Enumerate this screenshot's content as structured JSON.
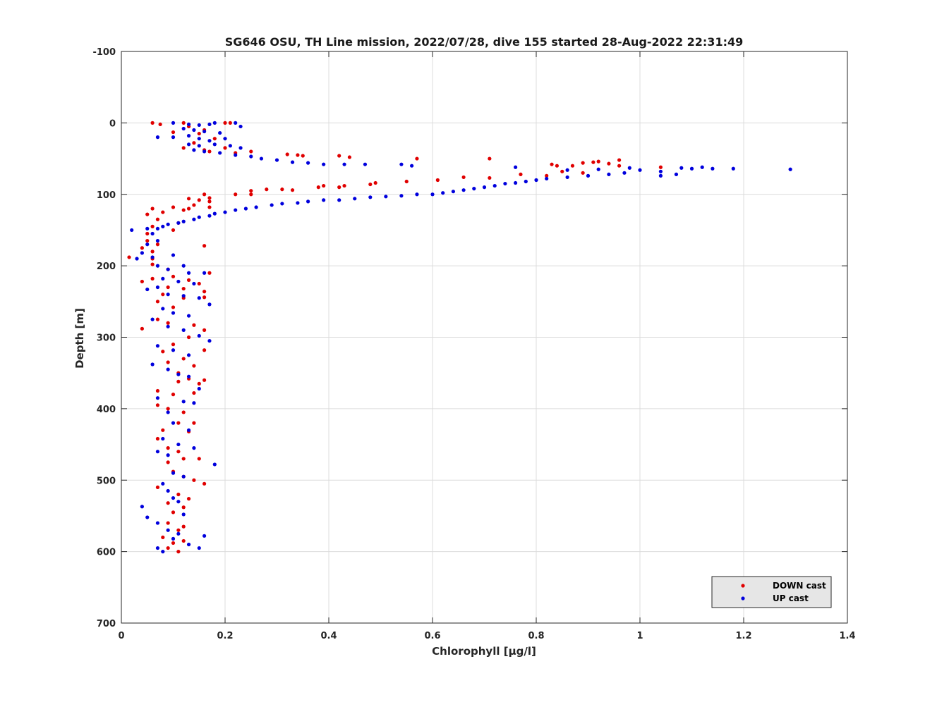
{
  "chart_data": {
    "type": "scatter",
    "title": "SG646 OSU, TH Line mission, 2022/07/28, dive 155 started 28-Aug-2022 22:31:49",
    "xlabel": "Chlorophyll [μg/l]",
    "ylabel": "Depth [m]",
    "xlim": [
      0,
      1.4
    ],
    "ylim": [
      -100,
      700
    ],
    "y_reversed": true,
    "xticks": [
      0,
      0.2,
      0.4,
      0.6,
      0.8,
      1,
      1.2,
      1.4
    ],
    "xtick_labels": [
      "0",
      "0.2",
      "0.4",
      "0.6",
      "0.8",
      "1",
      "1.2",
      "1.4"
    ],
    "yticks": [
      -100,
      0,
      100,
      200,
      300,
      400,
      500,
      600,
      700
    ],
    "ytick_labels": [
      "-100",
      "0",
      "100",
      "200",
      "300",
      "400",
      "500",
      "600",
      "700"
    ],
    "grid": true,
    "legend_position": "bottom-right",
    "series": [
      {
        "name": "DOWN cast",
        "color": "#e00000",
        "points": [
          [
            0.06,
            0
          ],
          [
            0.075,
            2
          ],
          [
            0.1,
            13
          ],
          [
            0.12,
            0
          ],
          [
            0.13,
            5
          ],
          [
            0.16,
            10
          ],
          [
            0.2,
            0
          ],
          [
            0.21,
            0
          ],
          [
            0.15,
            15
          ],
          [
            0.18,
            22
          ],
          [
            0.14,
            28
          ],
          [
            0.12,
            35
          ],
          [
            0.16,
            38
          ],
          [
            0.17,
            40
          ],
          [
            0.2,
            35
          ],
          [
            0.22,
            42
          ],
          [
            0.25,
            40
          ],
          [
            0.32,
            44
          ],
          [
            0.34,
            45
          ],
          [
            0.35,
            46
          ],
          [
            0.42,
            46
          ],
          [
            0.44,
            48
          ],
          [
            0.57,
            50
          ],
          [
            0.71,
            50
          ],
          [
            0.83,
            58
          ],
          [
            0.84,
            60
          ],
          [
            0.87,
            60
          ],
          [
            0.89,
            56
          ],
          [
            0.91,
            55
          ],
          [
            0.92,
            54
          ],
          [
            0.94,
            57
          ],
          [
            0.96,
            52
          ],
          [
            0.96,
            60
          ],
          [
            1.04,
            62
          ],
          [
            0.82,
            74
          ],
          [
            0.85,
            68
          ],
          [
            0.89,
            70
          ],
          [
            0.77,
            72
          ],
          [
            0.66,
            76
          ],
          [
            0.71,
            77
          ],
          [
            0.61,
            80
          ],
          [
            0.55,
            82
          ],
          [
            0.49,
            84
          ],
          [
            0.48,
            86
          ],
          [
            0.43,
            88
          ],
          [
            0.39,
            88
          ],
          [
            0.38,
            90
          ],
          [
            0.42,
            90
          ],
          [
            0.31,
            93
          ],
          [
            0.33,
            94
          ],
          [
            0.28,
            93
          ],
          [
            0.25,
            95
          ],
          [
            0.22,
            100
          ],
          [
            0.25,
            100
          ],
          [
            0.16,
            100
          ],
          [
            0.17,
            105
          ],
          [
            0.15,
            108
          ],
          [
            0.13,
            106
          ],
          [
            0.17,
            110
          ],
          [
            0.17,
            118
          ],
          [
            0.14,
            115
          ],
          [
            0.13,
            120
          ],
          [
            0.1,
            118
          ],
          [
            0.12,
            122
          ],
          [
            0.08,
            125
          ],
          [
            0.06,
            120
          ],
          [
            0.05,
            128
          ],
          [
            0.07,
            135
          ],
          [
            0.11,
            140
          ],
          [
            0.1,
            150
          ],
          [
            0.06,
            145
          ],
          [
            0.05,
            155
          ],
          [
            0.05,
            165
          ],
          [
            0.07,
            170
          ],
          [
            0.06,
            180
          ],
          [
            0.04,
            175
          ],
          [
            0.06,
            190
          ],
          [
            0.015,
            188
          ],
          [
            0.06,
            198
          ],
          [
            0.09,
            205
          ],
          [
            0.1,
            215
          ],
          [
            0.13,
            220
          ],
          [
            0.04,
            222
          ],
          [
            0.06,
            218
          ],
          [
            0.09,
            230
          ],
          [
            0.12,
            232
          ],
          [
            0.16,
            236
          ],
          [
            0.17,
            210
          ],
          [
            0.16,
            172
          ],
          [
            0.15,
            225
          ],
          [
            0.08,
            240
          ],
          [
            0.12,
            245
          ],
          [
            0.07,
            250
          ],
          [
            0.1,
            258
          ],
          [
            0.16,
            244
          ],
          [
            0.07,
            275
          ],
          [
            0.09,
            280
          ],
          [
            0.14,
            283
          ],
          [
            0.04,
            288
          ],
          [
            0.13,
            300
          ],
          [
            0.16,
            290
          ],
          [
            0.1,
            310
          ],
          [
            0.08,
            320
          ],
          [
            0.16,
            318
          ],
          [
            0.12,
            330
          ],
          [
            0.09,
            335
          ],
          [
            0.14,
            340
          ],
          [
            0.11,
            350
          ],
          [
            0.13,
            358
          ],
          [
            0.15,
            365
          ],
          [
            0.16,
            360
          ],
          [
            0.11,
            362
          ],
          [
            0.14,
            378
          ],
          [
            0.1,
            380
          ],
          [
            0.07,
            375
          ],
          [
            0.07,
            395
          ],
          [
            0.09,
            400
          ],
          [
            0.12,
            405
          ],
          [
            0.14,
            420
          ],
          [
            0.11,
            420
          ],
          [
            0.08,
            430
          ],
          [
            0.13,
            432
          ],
          [
            0.07,
            442
          ],
          [
            0.09,
            455
          ],
          [
            0.11,
            460
          ],
          [
            0.12,
            470
          ],
          [
            0.15,
            470
          ],
          [
            0.09,
            475
          ],
          [
            0.1,
            488
          ],
          [
            0.12,
            495
          ],
          [
            0.14,
            500
          ],
          [
            0.16,
            505
          ],
          [
            0.07,
            510
          ],
          [
            0.11,
            520
          ],
          [
            0.13,
            526
          ],
          [
            0.09,
            532
          ],
          [
            0.12,
            538
          ],
          [
            0.1,
            545
          ],
          [
            0.09,
            560
          ],
          [
            0.12,
            565
          ],
          [
            0.11,
            570
          ],
          [
            0.08,
            580
          ],
          [
            0.1,
            588
          ],
          [
            0.09,
            595
          ],
          [
            0.11,
            600
          ],
          [
            0.12,
            585
          ]
        ]
      },
      {
        "name": "UP cast",
        "color": "#0000dd",
        "points": [
          [
            0.1,
            0
          ],
          [
            0.13,
            2
          ],
          [
            0.15,
            3
          ],
          [
            0.17,
            2
          ],
          [
            0.18,
            0
          ],
          [
            0.22,
            0
          ],
          [
            0.23,
            5
          ],
          [
            0.12,
            8
          ],
          [
            0.14,
            10
          ],
          [
            0.16,
            12
          ],
          [
            0.19,
            14
          ],
          [
            0.07,
            20
          ],
          [
            0.1,
            20
          ],
          [
            0.13,
            18
          ],
          [
            0.15,
            22
          ],
          [
            0.17,
            25
          ],
          [
            0.2,
            22
          ],
          [
            0.13,
            30
          ],
          [
            0.15,
            32
          ],
          [
            0.18,
            30
          ],
          [
            0.21,
            32
          ],
          [
            0.23,
            35
          ],
          [
            0.14,
            38
          ],
          [
            0.16,
            40
          ],
          [
            0.19,
            42
          ],
          [
            0.22,
            45
          ],
          [
            0.25,
            47
          ],
          [
            0.27,
            50
          ],
          [
            0.3,
            52
          ],
          [
            0.33,
            55
          ],
          [
            0.36,
            56
          ],
          [
            0.39,
            58
          ],
          [
            0.43,
            58
          ],
          [
            0.47,
            58
          ],
          [
            0.54,
            58
          ],
          [
            0.56,
            60
          ],
          [
            0.76,
            62
          ],
          [
            0.86,
            66
          ],
          [
            0.92,
            65
          ],
          [
            0.98,
            63
          ],
          [
            1.0,
            66
          ],
          [
            1.04,
            68
          ],
          [
            1.08,
            63
          ],
          [
            1.1,
            64
          ],
          [
            1.12,
            62
          ],
          [
            1.14,
            64
          ],
          [
            1.18,
            64
          ],
          [
            1.29,
            65
          ],
          [
            1.07,
            72
          ],
          [
            1.04,
            74
          ],
          [
            0.97,
            70
          ],
          [
            0.94,
            72
          ],
          [
            0.9,
            74
          ],
          [
            0.86,
            76
          ],
          [
            0.82,
            78
          ],
          [
            0.8,
            80
          ],
          [
            0.78,
            82
          ],
          [
            0.76,
            84
          ],
          [
            0.74,
            85
          ],
          [
            0.72,
            88
          ],
          [
            0.7,
            90
          ],
          [
            0.68,
            92
          ],
          [
            0.66,
            94
          ],
          [
            0.64,
            96
          ],
          [
            0.62,
            98
          ],
          [
            0.6,
            100
          ],
          [
            0.57,
            100
          ],
          [
            0.54,
            102
          ],
          [
            0.51,
            103
          ],
          [
            0.48,
            104
          ],
          [
            0.45,
            106
          ],
          [
            0.42,
            108
          ],
          [
            0.39,
            108
          ],
          [
            0.36,
            110
          ],
          [
            0.34,
            112
          ],
          [
            0.31,
            113
          ],
          [
            0.29,
            115
          ],
          [
            0.26,
            118
          ],
          [
            0.24,
            120
          ],
          [
            0.22,
            122
          ],
          [
            0.2,
            125
          ],
          [
            0.18,
            127
          ],
          [
            0.17,
            130
          ],
          [
            0.15,
            132
          ],
          [
            0.14,
            135
          ],
          [
            0.12,
            138
          ],
          [
            0.11,
            140
          ],
          [
            0.09,
            142
          ],
          [
            0.08,
            145
          ],
          [
            0.07,
            148
          ],
          [
            0.05,
            148
          ],
          [
            0.02,
            150
          ],
          [
            0.06,
            155
          ],
          [
            0.07,
            165
          ],
          [
            0.05,
            170
          ],
          [
            0.04,
            182
          ],
          [
            0.06,
            188
          ],
          [
            0.03,
            190
          ],
          [
            0.07,
            200
          ],
          [
            0.09,
            205
          ],
          [
            0.12,
            200
          ],
          [
            0.1,
            185
          ],
          [
            0.13,
            210
          ],
          [
            0.16,
            210
          ],
          [
            0.08,
            218
          ],
          [
            0.11,
            222
          ],
          [
            0.14,
            225
          ],
          [
            0.07,
            230
          ],
          [
            0.05,
            233
          ],
          [
            0.09,
            240
          ],
          [
            0.12,
            242
          ],
          [
            0.15,
            245
          ],
          [
            0.17,
            254
          ],
          [
            0.08,
            260
          ],
          [
            0.1,
            266
          ],
          [
            0.13,
            270
          ],
          [
            0.06,
            275
          ],
          [
            0.09,
            285
          ],
          [
            0.12,
            290
          ],
          [
            0.15,
            298
          ],
          [
            0.17,
            305
          ],
          [
            0.07,
            312
          ],
          [
            0.1,
            318
          ],
          [
            0.13,
            325
          ],
          [
            0.06,
            338
          ],
          [
            0.09,
            345
          ],
          [
            0.11,
            352
          ],
          [
            0.13,
            355
          ],
          [
            0.15,
            372
          ],
          [
            0.07,
            385
          ],
          [
            0.12,
            390
          ],
          [
            0.14,
            392
          ],
          [
            0.09,
            405
          ],
          [
            0.1,
            420
          ],
          [
            0.13,
            430
          ],
          [
            0.08,
            442
          ],
          [
            0.11,
            450
          ],
          [
            0.14,
            455
          ],
          [
            0.07,
            460
          ],
          [
            0.09,
            465
          ],
          [
            0.18,
            478
          ],
          [
            0.1,
            490
          ],
          [
            0.12,
            495
          ],
          [
            0.08,
            505
          ],
          [
            0.09,
            515
          ],
          [
            0.1,
            525
          ],
          [
            0.11,
            530
          ],
          [
            0.04,
            537
          ],
          [
            0.05,
            552
          ],
          [
            0.12,
            548
          ],
          [
            0.07,
            560
          ],
          [
            0.09,
            570
          ],
          [
            0.11,
            575
          ],
          [
            0.16,
            578
          ],
          [
            0.1,
            582
          ],
          [
            0.13,
            590
          ],
          [
            0.07,
            595
          ],
          [
            0.15,
            595
          ],
          [
            0.08,
            600
          ]
        ]
      }
    ]
  }
}
